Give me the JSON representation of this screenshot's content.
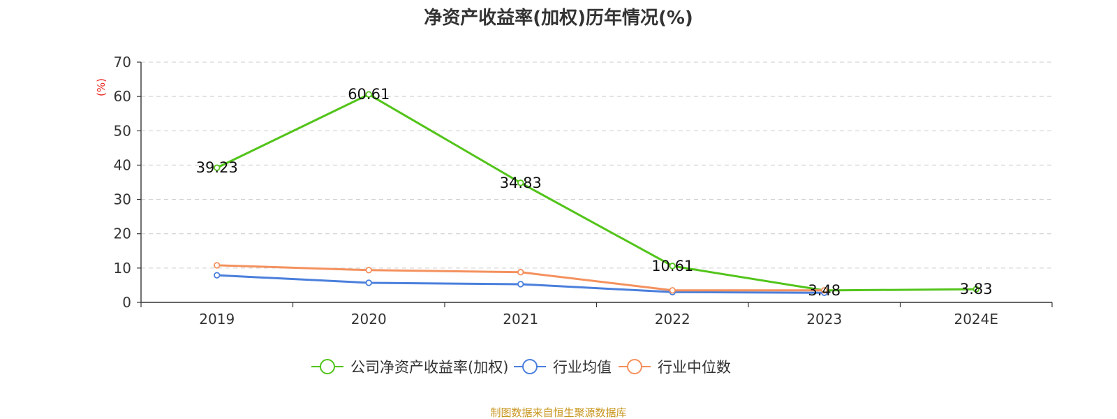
{
  "chart_data": {
    "type": "line",
    "title": "净资产收益率(加权)历年情况(%)",
    "ylabel": "(%)",
    "xlabel": "",
    "categories": [
      "2019",
      "2020",
      "2021",
      "2022",
      "2023",
      "2024E"
    ],
    "ylim": [
      0,
      70
    ],
    "yticks": [
      0,
      10,
      20,
      30,
      40,
      50,
      60,
      70
    ],
    "grid": true,
    "legend_position": "bottom",
    "series": [
      {
        "name": "公司净资产收益率(加权)",
        "color": "#52c41a",
        "values": [
          39.23,
          60.61,
          34.83,
          10.61,
          3.48,
          3.83
        ],
        "labels": [
          "39.23",
          "60.61",
          "34.83",
          "10.61",
          "3.48",
          "3.83"
        ]
      },
      {
        "name": "行业均值",
        "color": "#4a7fdc",
        "values": [
          7.9,
          5.7,
          5.3,
          3.0,
          2.8,
          null
        ]
      },
      {
        "name": "行业中位数",
        "color": "#f4915e",
        "values": [
          10.8,
          9.4,
          8.8,
          3.5,
          3.5,
          null
        ]
      }
    ],
    "ylabel_color": "#e8251e",
    "source": "制图数据来自恒生聚源数据库",
    "source_color": "#c8961e"
  }
}
